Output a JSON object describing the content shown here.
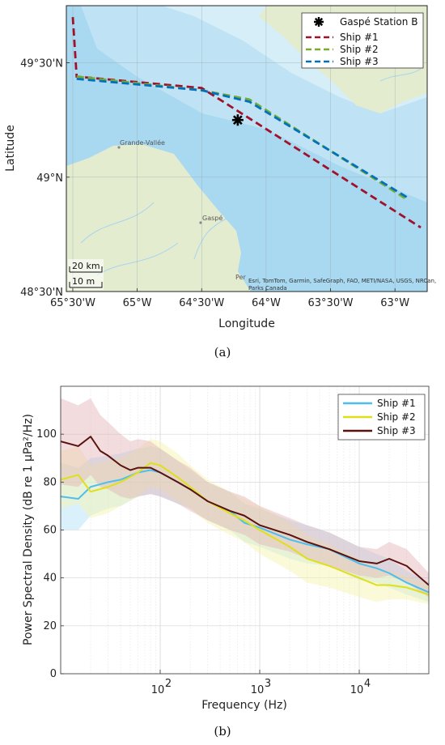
{
  "figure": {
    "panel_a_label": "(a)",
    "panel_b_label": "(b)"
  },
  "chart_data": [
    {
      "type": "line",
      "chart_kind": "map",
      "xlabel": "Longitude",
      "ylabel": "Latitude",
      "xlim": [
        -65.55,
        -62.75
      ],
      "ylim": [
        48.5,
        49.75
      ],
      "x_ticks": [
        {
          "value": -65.5,
          "label": "65°30'W"
        },
        {
          "value": -65.0,
          "label": "65°W"
        },
        {
          "value": -64.5,
          "label": "64°30'W"
        },
        {
          "value": -64.0,
          "label": "64°W"
        },
        {
          "value": -63.5,
          "label": "63°30'W"
        },
        {
          "value": -63.0,
          "label": "63°W"
        }
      ],
      "y_ticks": [
        {
          "value": 49.5,
          "label": "49°30'N"
        },
        {
          "value": 49.0,
          "label": "49°N"
        },
        {
          "value": 48.5,
          "label": "48°30'N"
        }
      ],
      "station": {
        "name": "Gaspé Station B",
        "lon": -64.22,
        "lat": 49.25
      },
      "series": [
        {
          "name": "Ship #1",
          "color": "#a0112b",
          "lon": [
            -65.5,
            -65.47,
            -64.5,
            -62.8
          ],
          "lat": [
            49.7,
            49.44,
            49.39,
            48.78
          ]
        },
        {
          "name": "Ship #2",
          "color": "#77ac30",
          "lon": [
            -65.47,
            -64.5,
            -64.13,
            -62.9
          ],
          "lat": [
            49.44,
            49.38,
            49.34,
            48.9
          ]
        },
        {
          "name": "Ship #3",
          "color": "#0072bd",
          "lon": [
            -65.47,
            -64.5,
            -64.13,
            -62.9
          ],
          "lat": [
            49.43,
            49.38,
            49.33,
            48.91
          ]
        }
      ],
      "place_labels": [
        "Grande-Vallée",
        "Gaspé",
        "Per"
      ],
      "scale_bars": [
        "20 km",
        "10 m"
      ],
      "attribution": [
        "Esri, TomTom, Garmin, SafeGraph, FAO, METI/NASA, USGS, NRCan,",
        "Parks Canada"
      ],
      "legend_position": "top-right"
    },
    {
      "type": "line",
      "xlabel": "Frequency (Hz)",
      "ylabel": "Power Spectral Density (dB re 1 µPa²/Hz)",
      "xscale": "log",
      "xlim": [
        10,
        50000
      ],
      "ylim": [
        0,
        120
      ],
      "y_ticks": [
        0,
        20,
        40,
        60,
        80,
        100
      ],
      "x_ticks": [
        {
          "value": 100,
          "base": "10",
          "exp": "2"
        },
        {
          "value": 1000,
          "base": "10",
          "exp": "3"
        },
        {
          "value": 10000,
          "base": "10",
          "exp": "4"
        }
      ],
      "grid": true,
      "legend_position": "top-right",
      "series": [
        {
          "name": "Ship #1",
          "color": "#4dbeee",
          "band_color": "#aedff7",
          "x": [
            10,
            15,
            20,
            30,
            40,
            60,
            80,
            100,
            150,
            200,
            300,
            500,
            700,
            1000,
            2000,
            3000,
            5000,
            10000,
            15000,
            20000,
            30000,
            50000
          ],
          "y": [
            74,
            73,
            78,
            80,
            81,
            84,
            85,
            84,
            80,
            77,
            72,
            68,
            63,
            61,
            56,
            54,
            52,
            46,
            44,
            42,
            38,
            34
          ],
          "band": [
            14,
            13,
            12,
            11,
            11,
            10,
            10,
            10,
            9,
            8,
            8,
            8,
            8,
            8,
            8,
            8,
            7,
            7,
            6,
            6,
            5,
            4
          ]
        },
        {
          "name": "Ship #2",
          "color": "#dfdf1a",
          "band_color": "#f6f3a8",
          "x": [
            10,
            15,
            20,
            30,
            40,
            60,
            80,
            100,
            150,
            200,
            300,
            500,
            700,
            1000,
            2000,
            3000,
            5000,
            10000,
            15000,
            20000,
            30000,
            50000
          ],
          "y": [
            81,
            83,
            76,
            78,
            80,
            84,
            88,
            87,
            82,
            78,
            72,
            67,
            64,
            60,
            53,
            48,
            45,
            40,
            37,
            37,
            36,
            33
          ],
          "band": [
            12,
            12,
            11,
            11,
            10,
            10,
            10,
            10,
            10,
            9,
            9,
            9,
            9,
            10,
            10,
            10,
            9,
            8,
            7,
            6,
            5,
            4
          ]
        },
        {
          "name": "Ship #3",
          "color": "#5a120e",
          "band_color": "#e3b1b5",
          "x": [
            10,
            15,
            20,
            25,
            30,
            40,
            50,
            60,
            80,
            100,
            150,
            200,
            300,
            500,
            700,
            1000,
            2000,
            3000,
            5000,
            10000,
            15000,
            20000,
            30000,
            50000
          ],
          "y": [
            97,
            95,
            99,
            93,
            91,
            87,
            85,
            86,
            86,
            84,
            80,
            77,
            72,
            68,
            66,
            62,
            58,
            55,
            52,
            47,
            46,
            48,
            45,
            37
          ],
          "band": [
            18,
            17,
            16,
            15,
            14,
            13,
            12,
            12,
            11,
            10,
            9,
            9,
            8,
            8,
            8,
            8,
            7,
            7,
            7,
            6,
            6,
            7,
            7,
            5
          ]
        }
      ]
    }
  ]
}
